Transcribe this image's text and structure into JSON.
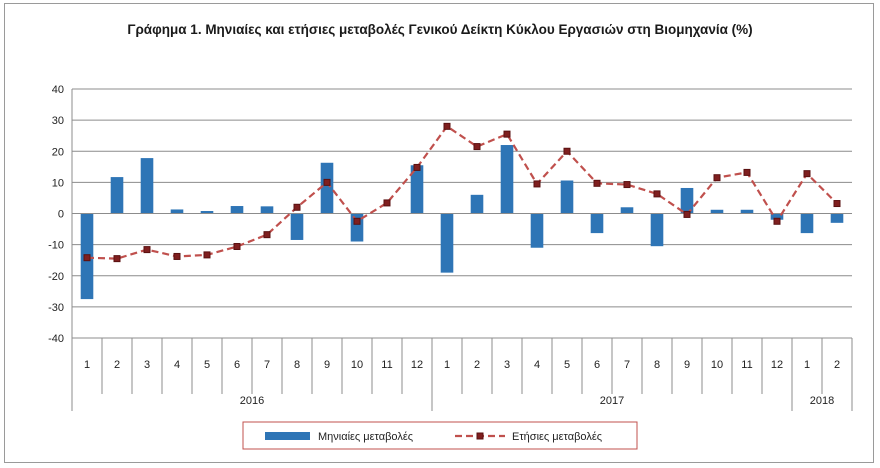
{
  "chart_data": {
    "type": "bar",
    "title": "Γράφημα 1. Μηνιαίες και ετήσιες μεταβολές  Γενικού Δείκτη Κύκλου Εργασιών στη Βιομηχανία (%)",
    "ylim": [
      -40,
      40
    ],
    "yticks": [
      "40",
      "30",
      "20",
      "10",
      "0",
      "-10",
      "-20",
      "-30",
      "-40"
    ],
    "grid": true,
    "legend_position": "bottom",
    "categories": [
      "1",
      "2",
      "3",
      "4",
      "5",
      "6",
      "7",
      "8",
      "9",
      "10",
      "11",
      "12",
      "1",
      "2",
      "3",
      "4",
      "5",
      "6",
      "7",
      "8",
      "9",
      "10",
      "11",
      "12",
      "1",
      "2"
    ],
    "year_groups": [
      {
        "label": "2016",
        "count": 12
      },
      {
        "label": "2017",
        "count": 12
      },
      {
        "label": "2018",
        "count": 2
      }
    ],
    "series": [
      {
        "name": "Μηνιαίες μεταβολές",
        "type": "bar",
        "color": "#2E75B6",
        "values": [
          -27.5,
          11.7,
          17.8,
          1.3,
          0.8,
          2.4,
          2.3,
          -8.5,
          16.3,
          -9.0,
          0.0,
          15.5,
          -19.0,
          6.0,
          22.0,
          -11.0,
          10.6,
          -6.3,
          2.0,
          -10.5,
          8.2,
          1.2,
          1.2,
          -2.0,
          -6.3,
          -3.0
        ]
      },
      {
        "name": "Ετήσιες μεταβολές",
        "type": "line",
        "color": "#C0504D",
        "values": [
          -14.2,
          -14.5,
          -11.6,
          -13.8,
          -13.3,
          -10.6,
          -6.8,
          2.0,
          10.0,
          -2.5,
          3.4,
          14.8,
          28.0,
          21.5,
          25.5,
          9.5,
          20.0,
          9.7,
          9.3,
          6.3,
          -0.3,
          11.5,
          13.2,
          -2.5,
          12.8,
          3.2
        ]
      }
    ]
  }
}
